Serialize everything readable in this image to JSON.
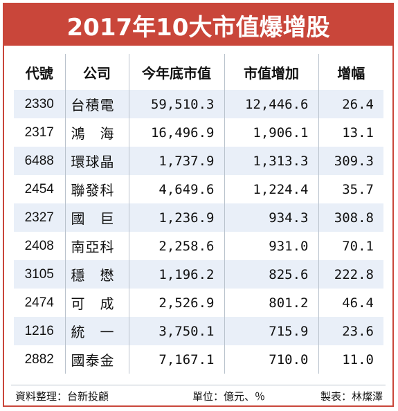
{
  "title": "2017年10大市值爆增股",
  "headers": [
    "代號",
    "公司",
    "今年底市值",
    "市值增加",
    "增幅"
  ],
  "rows": [
    {
      "code": "2330",
      "name": "台積電",
      "cap": "59,510.3",
      "increase": "12,446.6",
      "pct": "26.4"
    },
    {
      "code": "2317",
      "name": "鴻　海",
      "cap": "16,496.9",
      "increase": "1,906.1",
      "pct": "13.1"
    },
    {
      "code": "6488",
      "name": "環球晶",
      "cap": "1,737.9",
      "increase": "1,313.3",
      "pct": "309.3"
    },
    {
      "code": "2454",
      "name": "聯發科",
      "cap": "4,649.6",
      "increase": "1,224.4",
      "pct": "35.7"
    },
    {
      "code": "2327",
      "name": "國　巨",
      "cap": "1,236.9",
      "increase": "934.3",
      "pct": "308.8"
    },
    {
      "code": "2408",
      "name": "南亞科",
      "cap": "2,258.6",
      "increase": "931.0",
      "pct": "70.1"
    },
    {
      "code": "3105",
      "name": "穩　懋",
      "cap": "1,196.2",
      "increase": "825.6",
      "pct": "222.8"
    },
    {
      "code": "2474",
      "name": "可　成",
      "cap": "2,526.9",
      "increase": "801.2",
      "pct": "46.4"
    },
    {
      "code": "1216",
      "name": "統　一",
      "cap": "3,750.1",
      "increase": "715.9",
      "pct": "23.6"
    },
    {
      "code": "2882",
      "name": "國泰金",
      "cap": "7,167.1",
      "increase": "710.0",
      "pct": "11.0"
    }
  ],
  "footer": {
    "source": "資料整理：台新投顧",
    "unit": "單位：億元、％",
    "maker": "製表：林燦澤"
  },
  "colors": {
    "title_bg": "#c9463a",
    "row_stripe": "#e9eff8"
  }
}
